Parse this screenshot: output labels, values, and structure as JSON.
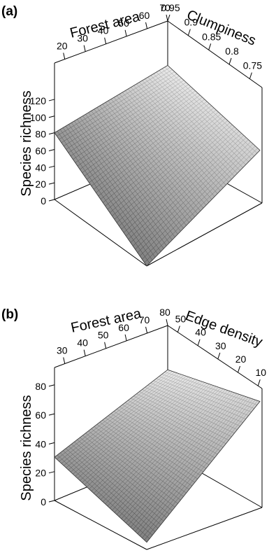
{
  "chart_data": [
    {
      "type": "surface",
      "panel": "(a)",
      "x_axis": {
        "label": "Forest area",
        "ticks": [
          "20",
          "30",
          "40",
          "50",
          "60",
          "70"
        ],
        "range": [
          15,
          70
        ]
      },
      "y_axis": {
        "label": "Clumpiness",
        "ticks": [
          "0.95",
          "0.9",
          "0.85",
          "0.8",
          "0.75"
        ],
        "range": [
          0.72,
          0.95
        ]
      },
      "z_axis": {
        "label": "Species richness",
        "ticks": [
          "0",
          "20",
          "40",
          "60",
          "80",
          "100",
          "120"
        ],
        "range": [
          0,
          130
        ]
      },
      "corners": [
        {
          "forest_area": 15,
          "clumpiness": 0.95,
          "species_richness": 80
        },
        {
          "forest_area": 70,
          "clumpiness": 0.95,
          "species_richness": 102
        },
        {
          "forest_area": 15,
          "clumpiness": 0.72,
          "species_richness": 0
        },
        {
          "forest_area": 70,
          "clumpiness": 0.72,
          "species_richness": 80
        }
      ],
      "grid": true
    },
    {
      "type": "surface",
      "panel": "(b)",
      "x_axis": {
        "label": "Forest area",
        "ticks": [
          "30",
          "40",
          "50",
          "60",
          "70",
          "80"
        ],
        "range": [
          25,
          80
        ]
      },
      "y_axis": {
        "label": "Edge density",
        "ticks": [
          "50",
          "40",
          "30",
          "20",
          "10"
        ],
        "range": [
          8,
          55
        ]
      },
      "z_axis": {
        "label": "Species richness",
        "ticks": [
          "0",
          "20",
          "40",
          "60",
          "80"
        ],
        "range": [
          0,
          92
        ]
      },
      "corners": [
        {
          "forest_area": 25,
          "edge_density": 55,
          "species_richness": 30
        },
        {
          "forest_area": 80,
          "edge_density": 55,
          "species_richness": 58
        },
        {
          "forest_area": 25,
          "edge_density": 8,
          "species_richness": 5
        },
        {
          "forest_area": 80,
          "edge_density": 8,
          "species_richness": 70
        }
      ],
      "grid": true
    }
  ]
}
